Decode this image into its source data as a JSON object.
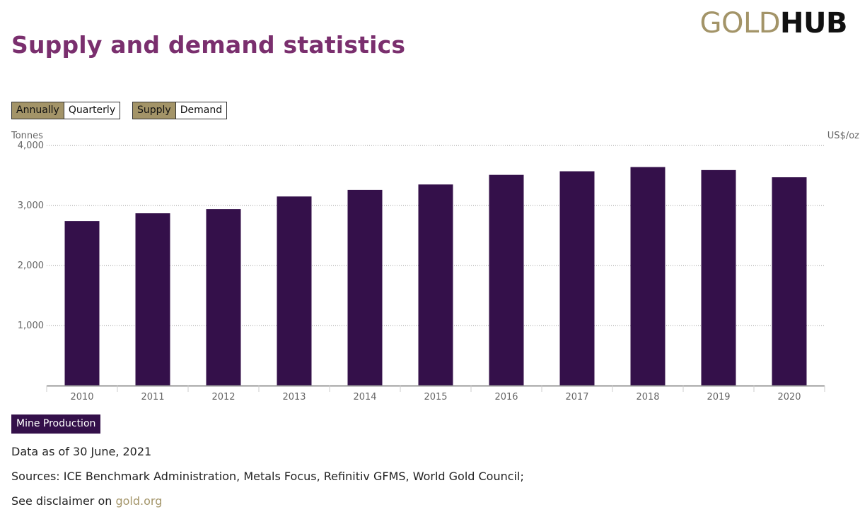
{
  "header": {
    "title": "Supply and demand statistics",
    "logo_gold": "GOLD",
    "logo_hub": "HUB"
  },
  "toggles": {
    "period": [
      {
        "label": "Annually",
        "active": true
      },
      {
        "label": "Quarterly",
        "active": false
      }
    ],
    "view": [
      {
        "label": "Supply",
        "active": true
      },
      {
        "label": "Demand",
        "active": false
      }
    ]
  },
  "colors": {
    "title": "#7a2f6e",
    "accent_gold": "#a39468",
    "bar": "#34104a",
    "grid": "#999999",
    "axis": "#999999",
    "tick_text": "#666666"
  },
  "chart_data": {
    "type": "bar",
    "title": "",
    "xlabel": "",
    "ylabel": "Tonnes",
    "y2label": "US$/oz",
    "ylim": [
      0,
      4000
    ],
    "yticks": [
      1000,
      2000,
      3000,
      4000
    ],
    "ytick_labels": [
      "1,000",
      "2,000",
      "3,000",
      "4,000"
    ],
    "grid": true,
    "categories": [
      "2010",
      "2011",
      "2012",
      "2013",
      "2014",
      "2015",
      "2016",
      "2017",
      "2018",
      "2019",
      "2020"
    ],
    "series": [
      {
        "name": "Mine Production",
        "values": [
          2740,
          2870,
          2940,
          3150,
          3260,
          3350,
          3510,
          3570,
          3640,
          3590,
          3470
        ]
      }
    ],
    "legend": "bottom-left"
  },
  "footer": {
    "as_of": "Data as of 30 June, 2021",
    "sources": "Sources: ICE Benchmark Administration, Metals Focus, Refinitiv GFMS, World Gold Council;",
    "disclaimer_prefix": "See disclaimer on ",
    "disclaimer_link": "gold.org"
  }
}
